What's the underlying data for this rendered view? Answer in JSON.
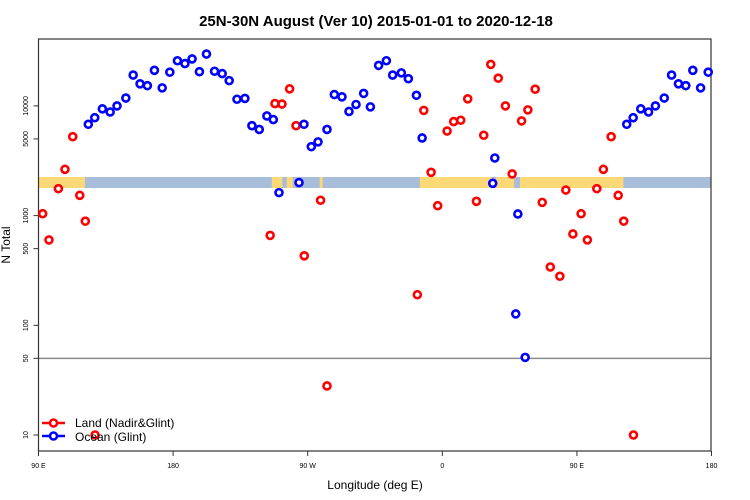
{
  "chart_data": {
    "type": "scatter",
    "title": "25N-30N August (Ver 10)   2015-01-01 to 2020-12-18",
    "xlabel": "Longitude (deg E)",
    "ylabel": "N Total",
    "y_scale": "log",
    "xlim_deg_e": [
      90,
      180
    ],
    "x_wraps_once_around": true,
    "ylim": [
      6.5,
      40000
    ],
    "x_tick_labels": [
      "90 E",
      "180",
      "90 W",
      "0",
      "90 E",
      "180"
    ],
    "y_ticks": [
      10,
      50,
      100,
      500,
      1000,
      5000,
      10000
    ],
    "y_tick_labels": [
      "10",
      "50",
      "100",
      "500",
      "1000",
      "5000",
      "10000"
    ],
    "reference_line": 50,
    "grid": false,
    "legend_position": "bottom-left",
    "band": {
      "description_colors": {
        "land": "#FDD877",
        "ocean": "#A7BDDA"
      },
      "land_ranges_deg_e": [
        [
          90,
          121
        ],
        [
          -114,
          -107
        ],
        [
          -104,
          -100
        ],
        [
          -82,
          -80
        ],
        [
          -15,
          33
        ],
        [
          36,
          48
        ],
        [
          52,
          121
        ]
      ]
    },
    "series": [
      {
        "name": "Land (Nadir&Glint)",
        "color": "#FF0000",
        "points": [
          [
            92.8,
            1040
          ],
          [
            97.0,
            600
          ],
          [
            103.3,
            1760
          ],
          [
            107.7,
            2640
          ],
          [
            112.9,
            5240
          ],
          [
            117.6,
            1530
          ],
          [
            121.3,
            890
          ],
          [
            127.8,
            10
          ],
          [
            -115.1,
            660
          ],
          [
            -111.9,
            10500
          ],
          [
            -107.2,
            10400
          ],
          [
            -102.1,
            14300
          ],
          [
            -97.8,
            6600
          ],
          [
            -92.3,
            430
          ],
          [
            -81.4,
            1380
          ],
          [
            -77.1,
            28
          ],
          [
            -16.7,
            190
          ],
          [
            -12.4,
            9100
          ],
          [
            -7.5,
            2480
          ],
          [
            -3.1,
            1230
          ],
          [
            3.2,
            5900
          ],
          [
            7.6,
            7200
          ],
          [
            12.3,
            7400
          ],
          [
            17.0,
            11600
          ],
          [
            22.8,
            1350
          ],
          [
            27.7,
            5400
          ],
          [
            32.4,
            23900
          ],
          [
            37.4,
            17900
          ],
          [
            42.2,
            10000
          ],
          [
            46.7,
            2400
          ],
          [
            53.0,
            7300
          ],
          [
            57.2,
            9200
          ],
          [
            62.1,
            14200
          ],
          [
            66.8,
            1320
          ],
          [
            72.2,
            340
          ],
          [
            78.6,
            280
          ],
          [
            82.6,
            1710
          ],
          [
            87.3,
            680
          ]
        ]
      },
      {
        "name": "Ocean (Glint)",
        "color": "#0000FF",
        "points": [
          [
            123.3,
            6800
          ],
          [
            127.6,
            7800
          ],
          [
            132.7,
            9400
          ],
          [
            137.9,
            8800
          ],
          [
            142.5,
            10000
          ],
          [
            148.4,
            11800
          ],
          [
            153.3,
            19100
          ],
          [
            157.9,
            15900
          ],
          [
            162.8,
            15300
          ],
          [
            167.5,
            21100
          ],
          [
            172.7,
            14600
          ],
          [
            177.8,
            20300
          ],
          [
            -177.1,
            25800
          ],
          [
            -172.1,
            24300
          ],
          [
            -167.3,
            26800
          ],
          [
            -162.4,
            20500
          ],
          [
            -157.7,
            29700
          ],
          [
            -152.3,
            20700
          ],
          [
            -147.2,
            19700
          ],
          [
            -142.5,
            17000
          ],
          [
            -137.3,
            11500
          ],
          [
            -132.0,
            11700
          ],
          [
            -127.3,
            6600
          ],
          [
            -122.4,
            6100
          ],
          [
            -117.3,
            8100
          ],
          [
            -113.0,
            7500
          ],
          [
            -109.2,
            1620
          ],
          [
            -95.8,
            2000
          ],
          [
            -92.5,
            6800
          ],
          [
            -87.6,
            4250
          ],
          [
            -83.1,
            4700
          ],
          [
            -77.1,
            6100
          ],
          [
            -72.2,
            12700
          ],
          [
            -67.1,
            12100
          ],
          [
            -62.4,
            8900
          ],
          [
            -57.7,
            10300
          ],
          [
            -52.6,
            13000
          ],
          [
            -48.1,
            9800
          ],
          [
            -42.6,
            23400
          ],
          [
            -37.4,
            25800
          ],
          [
            -33.2,
            19100
          ],
          [
            -27.4,
            20000
          ],
          [
            -22.7,
            17700
          ],
          [
            -17.3,
            12500
          ],
          [
            -13.5,
            5100
          ],
          [
            33.7,
            1970
          ],
          [
            35.1,
            3350
          ],
          [
            49.1,
            127
          ],
          [
            50.5,
            1035
          ],
          [
            55.4,
            51
          ]
        ]
      }
    ]
  }
}
